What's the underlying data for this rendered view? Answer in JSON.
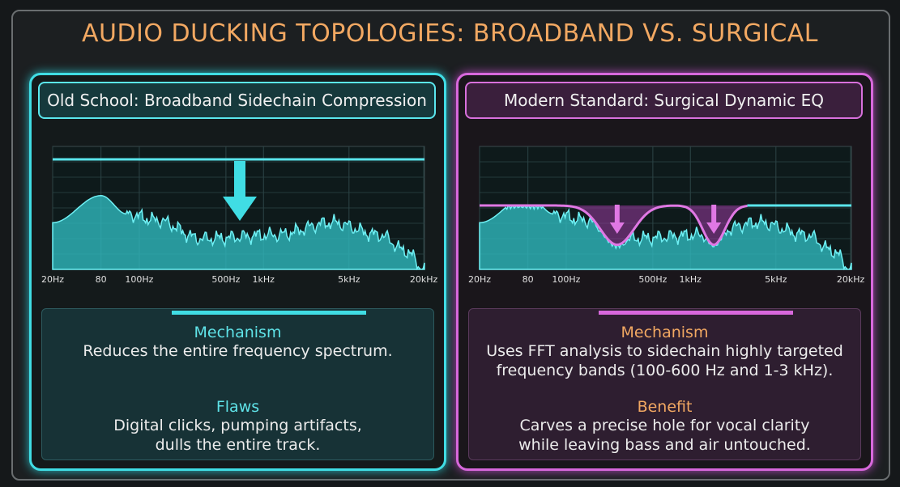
{
  "title": "AUDIO DUCKING TOPOLOGIES: BROADBAND VS. SURGICAL",
  "panels": [
    {
      "heading": "Old School: Broadband Sidechain Compression",
      "freq_labels": [
        "20Hz",
        "80",
        "100Hz",
        "500Hz",
        "1kHz",
        "5kHz",
        "20kHz"
      ],
      "sections": [
        {
          "label": "Mechanism",
          "lines": [
            "Reduces the entire frequency spectrum."
          ]
        },
        {
          "label": "Flaws",
          "lines": [
            "Digital clicks, pumping artifacts,",
            "dulls the entire track."
          ]
        }
      ]
    },
    {
      "heading": "Modern Standard: Surgical Dynamic EQ",
      "freq_labels": [
        "20Hz",
        "80",
        "100Hz",
        "500Hz",
        "1kHz",
        "5kHz",
        "20kHz"
      ],
      "sections": [
        {
          "label": "Mechanism",
          "lines": [
            "Uses FFT analysis to sidechain highly targeted",
            "frequency bands (100-600 Hz and 1-3 kHz)."
          ]
        },
        {
          "label": "Benefit",
          "lines": [
            "Carves a precise hole for vocal clarity",
            "while leaving bass and air untouched."
          ]
        }
      ]
    }
  ]
}
